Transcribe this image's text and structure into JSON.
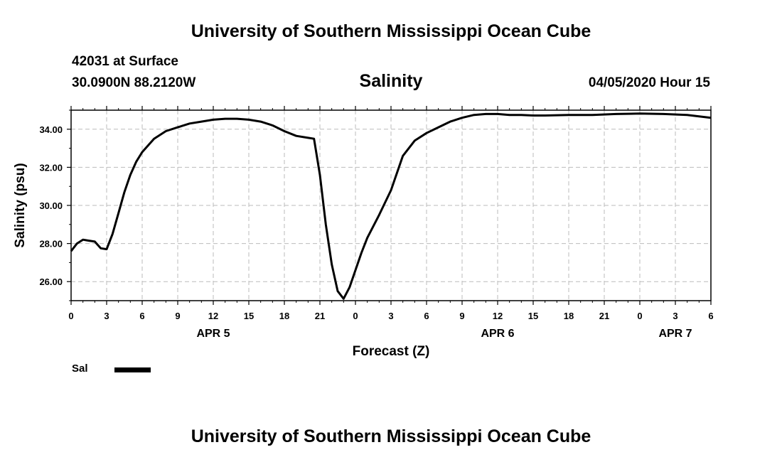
{
  "header": {
    "top_title": "University of Southern Mississippi Ocean Cube",
    "station": "42031 at Surface",
    "coordinates": "30.0900N 88.2120W",
    "datetime": "04/05/2020 Hour 15",
    "bottom_title": "University of Southern Mississippi Ocean Cube"
  },
  "chart_data": {
    "type": "line",
    "title": "Salinity",
    "xlabel": "Forecast (Z)",
    "ylabel": "Salinity (psu)",
    "x_unit": "hours since APR 5 00Z",
    "xlim": [
      0,
      54
    ],
    "ylim": [
      25.0,
      35.0
    ],
    "grid": true,
    "line_color": "#000000",
    "x_ticks": [
      {
        "x": 0,
        "label": "0"
      },
      {
        "x": 3,
        "label": "3"
      },
      {
        "x": 6,
        "label": "6"
      },
      {
        "x": 9,
        "label": "9"
      },
      {
        "x": 12,
        "label": "12"
      },
      {
        "x": 15,
        "label": "15"
      },
      {
        "x": 18,
        "label": "18"
      },
      {
        "x": 21,
        "label": "21"
      },
      {
        "x": 24,
        "label": "0"
      },
      {
        "x": 27,
        "label": "3"
      },
      {
        "x": 30,
        "label": "6"
      },
      {
        "x": 33,
        "label": "9"
      },
      {
        "x": 36,
        "label": "12"
      },
      {
        "x": 39,
        "label": "15"
      },
      {
        "x": 42,
        "label": "18"
      },
      {
        "x": 45,
        "label": "21"
      },
      {
        "x": 48,
        "label": "0"
      },
      {
        "x": 51,
        "label": "3"
      },
      {
        "x": 54,
        "label": "6"
      }
    ],
    "date_labels": [
      {
        "x": 12,
        "label": "APR 5"
      },
      {
        "x": 36,
        "label": "APR 6"
      },
      {
        "x": 51,
        "label": "APR 7"
      }
    ],
    "y_ticks": [
      {
        "y": 26,
        "label": "26.00"
      },
      {
        "y": 28,
        "label": "28.00"
      },
      {
        "y": 30,
        "label": "30.00"
      },
      {
        "y": 32,
        "label": "32.00"
      },
      {
        "y": 34,
        "label": "34.00"
      }
    ],
    "series": [
      {
        "name": "Sal",
        "x": [
          0,
          0.5,
          1,
          1.5,
          2,
          2.5,
          3,
          3.5,
          4,
          4.5,
          5,
          5.5,
          6,
          7,
          8,
          9,
          10,
          11,
          12,
          13,
          14,
          15,
          16,
          17,
          18,
          19,
          20,
          20.5,
          21,
          21.5,
          22,
          22.5,
          23,
          23.5,
          24,
          24.5,
          25,
          26,
          27,
          28,
          29,
          30,
          31,
          32,
          33,
          34,
          35,
          36,
          37,
          38,
          39,
          40,
          42,
          44,
          46,
          48,
          50,
          52,
          54
        ],
        "y": [
          27.6,
          28.0,
          28.2,
          28.15,
          28.1,
          27.75,
          27.7,
          28.5,
          29.6,
          30.7,
          31.6,
          32.3,
          32.8,
          33.5,
          33.9,
          34.1,
          34.3,
          34.4,
          34.5,
          34.55,
          34.55,
          34.5,
          34.4,
          34.2,
          33.9,
          33.65,
          33.55,
          33.5,
          31.6,
          29.0,
          26.9,
          25.5,
          25.1,
          25.7,
          26.6,
          27.5,
          28.3,
          29.5,
          30.8,
          32.6,
          33.4,
          33.8,
          34.1,
          34.4,
          34.6,
          34.75,
          34.8,
          34.8,
          34.75,
          34.75,
          34.72,
          34.72,
          34.75,
          34.75,
          34.8,
          34.82,
          34.8,
          34.75,
          34.6
        ]
      }
    ]
  }
}
